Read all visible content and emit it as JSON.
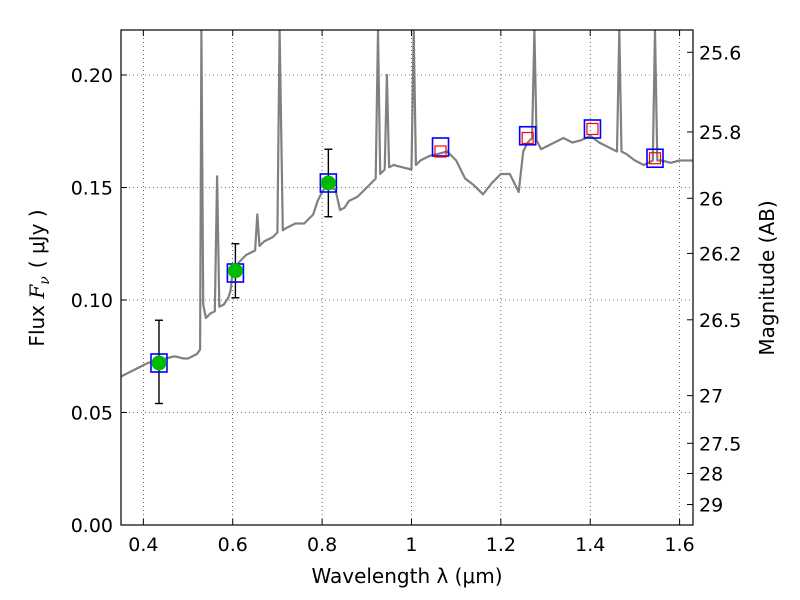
{
  "chart_data": {
    "type": "scatter",
    "title": "",
    "xlabel": "Wavelength  λ (μm)",
    "ylabel": {
      "prefix": "Flux  ",
      "symbol": "F",
      "subscript": "ν",
      "unit": "( μJy )"
    },
    "y2label": "Magnitude (AB)",
    "xlim": [
      0.35,
      1.63
    ],
    "ylim": [
      0.0,
      0.22
    ],
    "grid": true,
    "x_ticks": [
      {
        "value": 0.4,
        "label": "0.4"
      },
      {
        "value": 0.6,
        "label": "0.6"
      },
      {
        "value": 0.8,
        "label": "0.8"
      },
      {
        "value": 1.0,
        "label": "1"
      },
      {
        "value": 1.2,
        "label": "1.2"
      },
      {
        "value": 1.4,
        "label": "1.4"
      },
      {
        "value": 1.6,
        "label": "1.6"
      }
    ],
    "y_ticks": [
      {
        "value": 0.0,
        "label": "0.00"
      },
      {
        "value": 0.05,
        "label": "0.05"
      },
      {
        "value": 0.1,
        "label": "0.10"
      },
      {
        "value": 0.15,
        "label": "0.15"
      },
      {
        "value": 0.2,
        "label": "0.20"
      }
    ],
    "y2_ticks": [
      {
        "flux": 0.2101,
        "label": "25.6"
      },
      {
        "flux": 0.1747,
        "label": "25.8"
      },
      {
        "flux": 0.1452,
        "label": "26"
      },
      {
        "flux": 0.1207,
        "label": "26.2"
      },
      {
        "flux": 0.0912,
        "label": "26.5"
      },
      {
        "flux": 0.0575,
        "label": "27"
      },
      {
        "flux": 0.0363,
        "label": "27.5"
      },
      {
        "flux": 0.0229,
        "label": "28"
      },
      {
        "flux": 0.0091,
        "label": "29"
      }
    ],
    "series": [
      {
        "kind": "model-spectrum",
        "color": "#808080",
        "points": [
          [
            0.35,
            0.066
          ],
          [
            0.37,
            0.068
          ],
          [
            0.39,
            0.07
          ],
          [
            0.41,
            0.072
          ],
          [
            0.43,
            0.073
          ],
          [
            0.45,
            0.074
          ],
          [
            0.47,
            0.075
          ],
          [
            0.49,
            0.074
          ],
          [
            0.5,
            0.074
          ],
          [
            0.51,
            0.075
          ],
          [
            0.52,
            0.076
          ],
          [
            0.527,
            0.078
          ],
          [
            0.53,
            0.22
          ],
          [
            0.534,
            0.098
          ],
          [
            0.54,
            0.092
          ],
          [
            0.55,
            0.094
          ],
          [
            0.56,
            0.095
          ],
          [
            0.565,
            0.155
          ],
          [
            0.57,
            0.097
          ],
          [
            0.58,
            0.098
          ],
          [
            0.59,
            0.101
          ],
          [
            0.595,
            0.104
          ],
          [
            0.6,
            0.113
          ],
          [
            0.61,
            0.116
          ],
          [
            0.62,
            0.118
          ],
          [
            0.63,
            0.12
          ],
          [
            0.64,
            0.121
          ],
          [
            0.65,
            0.122
          ],
          [
            0.655,
            0.138
          ],
          [
            0.66,
            0.124
          ],
          [
            0.67,
            0.126
          ],
          [
            0.68,
            0.127
          ],
          [
            0.69,
            0.128
          ],
          [
            0.7,
            0.13
          ],
          [
            0.705,
            0.22
          ],
          [
            0.712,
            0.131
          ],
          [
            0.72,
            0.132
          ],
          [
            0.74,
            0.134
          ],
          [
            0.76,
            0.134
          ],
          [
            0.78,
            0.138
          ],
          [
            0.79,
            0.144
          ],
          [
            0.8,
            0.148
          ],
          [
            0.81,
            0.151
          ],
          [
            0.82,
            0.15
          ],
          [
            0.83,
            0.149
          ],
          [
            0.84,
            0.14
          ],
          [
            0.85,
            0.141
          ],
          [
            0.86,
            0.144
          ],
          [
            0.87,
            0.145
          ],
          [
            0.88,
            0.146
          ],
          [
            0.89,
            0.148
          ],
          [
            0.9,
            0.15
          ],
          [
            0.91,
            0.152
          ],
          [
            0.92,
            0.154
          ],
          [
            0.925,
            0.22
          ],
          [
            0.93,
            0.156
          ],
          [
            0.94,
            0.158
          ],
          [
            0.945,
            0.2
          ],
          [
            0.95,
            0.159
          ],
          [
            0.96,
            0.16
          ],
          [
            0.98,
            0.159
          ],
          [
            1.0,
            0.158
          ],
          [
            1.005,
            0.22
          ],
          [
            1.01,
            0.16
          ],
          [
            1.02,
            0.162
          ],
          [
            1.04,
            0.164
          ],
          [
            1.06,
            0.165
          ],
          [
            1.08,
            0.166
          ],
          [
            1.1,
            0.162
          ],
          [
            1.12,
            0.154
          ],
          [
            1.14,
            0.151
          ],
          [
            1.16,
            0.147
          ],
          [
            1.18,
            0.152
          ],
          [
            1.2,
            0.156
          ],
          [
            1.22,
            0.156
          ],
          [
            1.24,
            0.148
          ],
          [
            1.25,
            0.166
          ],
          [
            1.26,
            0.17
          ],
          [
            1.27,
            0.172
          ],
          [
            1.275,
            0.22
          ],
          [
            1.28,
            0.171
          ],
          [
            1.29,
            0.167
          ],
          [
            1.3,
            0.168
          ],
          [
            1.32,
            0.17
          ],
          [
            1.34,
            0.172
          ],
          [
            1.36,
            0.17
          ],
          [
            1.38,
            0.171
          ],
          [
            1.4,
            0.173
          ],
          [
            1.42,
            0.17
          ],
          [
            1.44,
            0.168
          ],
          [
            1.46,
            0.166
          ],
          [
            1.465,
            0.22
          ],
          [
            1.47,
            0.166
          ],
          [
            1.48,
            0.165
          ],
          [
            1.5,
            0.162
          ],
          [
            1.52,
            0.16
          ],
          [
            1.54,
            0.162
          ],
          [
            1.545,
            0.22
          ],
          [
            1.55,
            0.162
          ],
          [
            1.56,
            0.162
          ],
          [
            1.58,
            0.161
          ],
          [
            1.6,
            0.162
          ],
          [
            1.63,
            0.162
          ]
        ]
      },
      {
        "kind": "observed-photometry",
        "marker": "circle",
        "color": "#00bb00",
        "points": [
          {
            "x": 0.435,
            "y": 0.072,
            "yerr_low": 0.054,
            "yerr_high": 0.091
          },
          {
            "x": 0.606,
            "y": 0.113,
            "yerr_low": 0.101,
            "yerr_high": 0.125
          },
          {
            "x": 0.814,
            "y": 0.152,
            "yerr_low": 0.137,
            "yerr_high": 0.167
          }
        ]
      },
      {
        "kind": "model-photometry",
        "marker": "open-square",
        "color": "#0000ff",
        "points": [
          {
            "x": 0.435,
            "y": 0.072
          },
          {
            "x": 0.606,
            "y": 0.112
          },
          {
            "x": 0.814,
            "y": 0.152
          },
          {
            "x": 1.065,
            "y": 0.168
          },
          {
            "x": 1.26,
            "y": 0.173
          },
          {
            "x": 1.405,
            "y": 0.176
          },
          {
            "x": 1.545,
            "y": 0.163
          }
        ]
      },
      {
        "kind": "upper-limit-photometry",
        "marker": "open-square-small",
        "color": "#ff0000",
        "points": [
          {
            "x": 1.065,
            "y": 0.166
          },
          {
            "x": 1.26,
            "y": 0.172
          },
          {
            "x": 1.405,
            "y": 0.176
          },
          {
            "x": 1.545,
            "y": 0.163
          }
        ]
      }
    ]
  }
}
